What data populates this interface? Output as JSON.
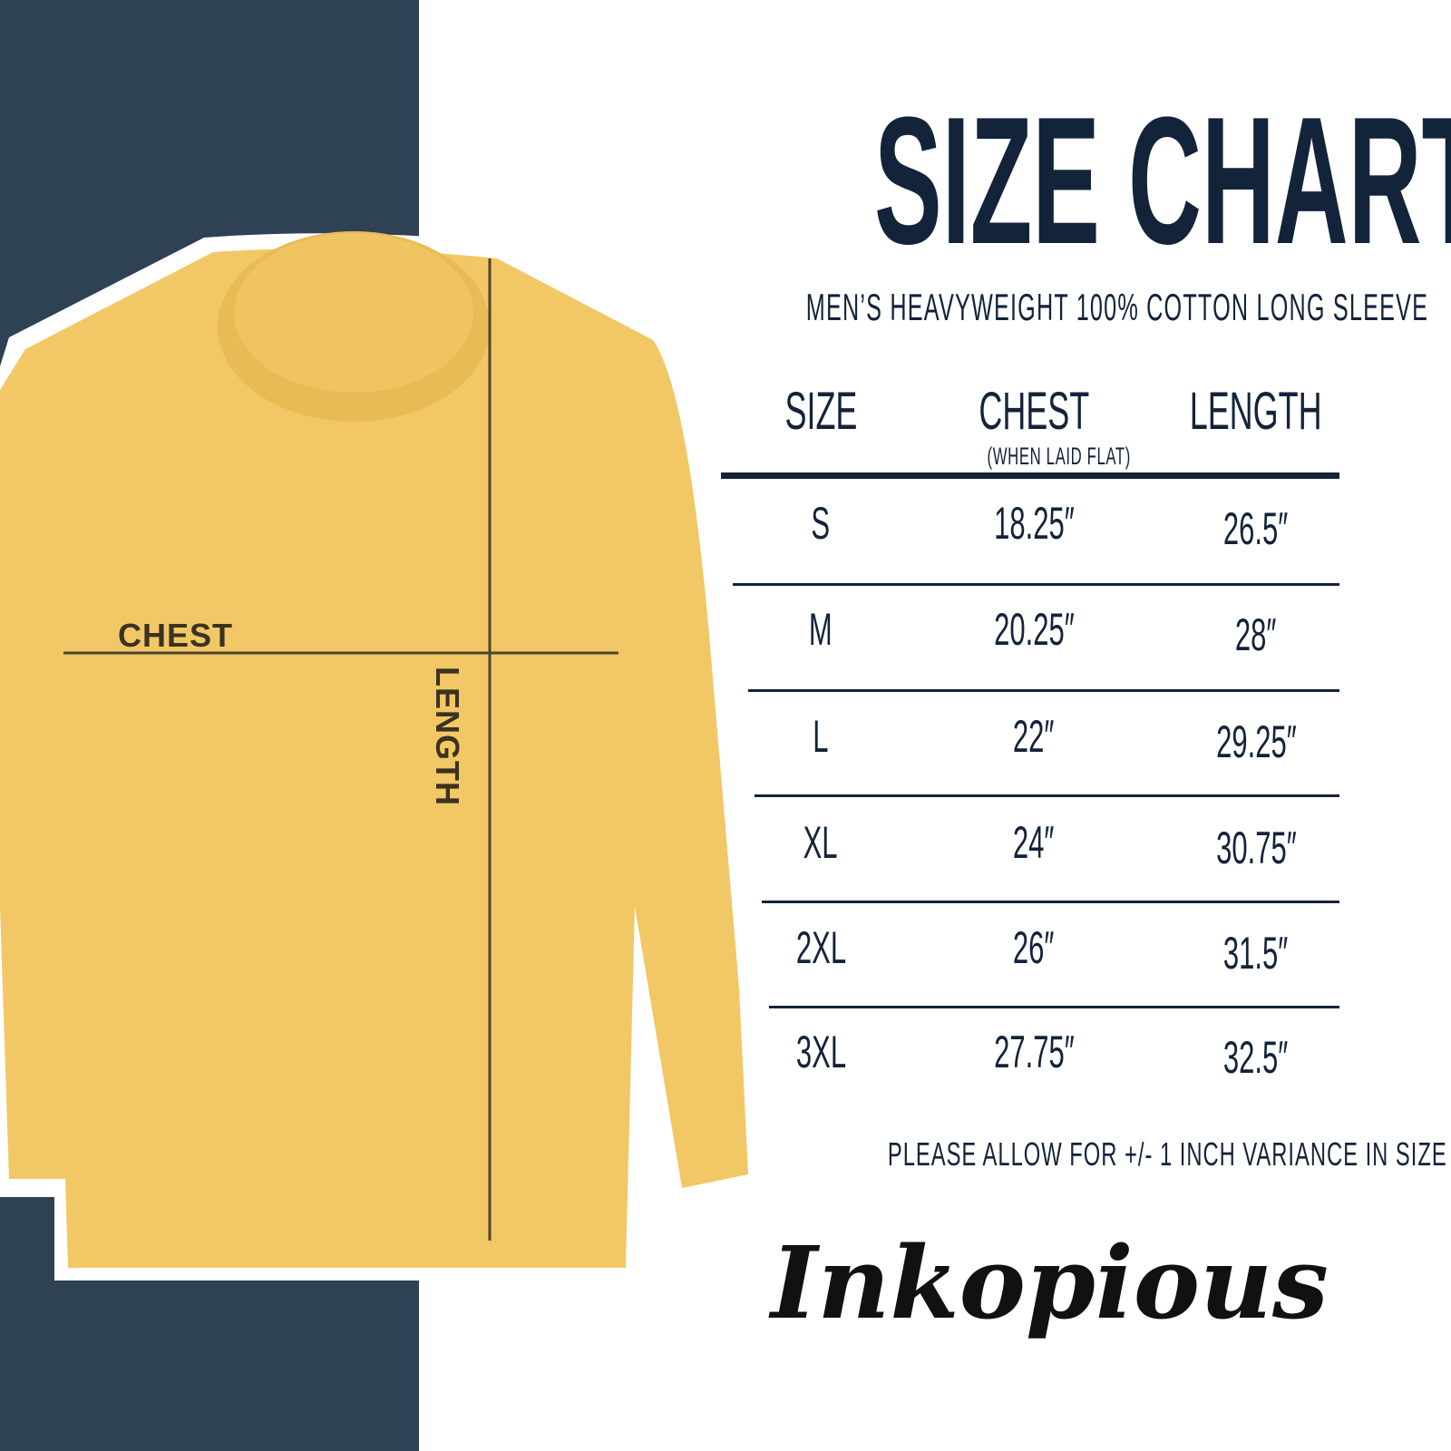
{
  "title": "SIZE CHART",
  "subtitle": "MEN’S HEAVYWEIGHT 100% COTTON LONG SLEEVE",
  "diagram": {
    "chest_label": "CHEST",
    "length_label": "LENGTH",
    "shirt_color": "#f2c766",
    "panel_color": "#2e4155"
  },
  "table": {
    "headers": [
      "SIZE",
      "CHEST",
      "LENGTH"
    ],
    "chest_note": "(WHEN LAID FLAT)",
    "rows": [
      [
        "S",
        "18.25″",
        "26.5″"
      ],
      [
        "M",
        "20.25″",
        "28″"
      ],
      [
        "L",
        "22″",
        "29.25″"
      ],
      [
        "XL",
        "24″",
        "30.75″"
      ],
      [
        "2XL",
        "26″",
        "31.5″"
      ],
      [
        "3XL",
        "27.75″",
        "32.5″"
      ]
    ]
  },
  "footer": "PLEASE ALLOW FOR +/- 1 INCH VARIANCE IN SIZE",
  "brand": {
    "logo_text": "Inkopious",
    "text_color": "#13233a"
  }
}
